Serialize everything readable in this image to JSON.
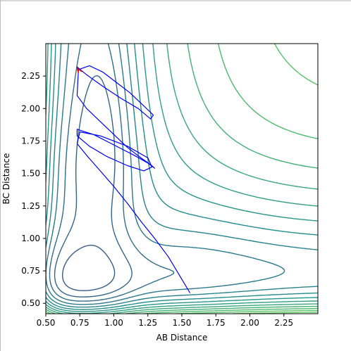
{
  "chart_data": {
    "type": "contour",
    "xlabel": "AB Distance",
    "ylabel": "BC Distance",
    "xlim": [
      0.5,
      2.5
    ],
    "ylim": [
      0.42,
      2.5
    ],
    "x_ticks": [
      0.5,
      0.75,
      1.0,
      1.25,
      1.5,
      1.75,
      2.0,
      2.25
    ],
    "x_tick_labels": [
      "0.50",
      "0.75",
      "1.00",
      "1.25",
      "1.50",
      "1.75",
      "2.00",
      "2.25"
    ],
    "y_ticks": [
      0.5,
      0.75,
      1.0,
      1.25,
      1.5,
      1.75,
      2.0,
      2.25
    ],
    "y_tick_labels": [
      "0.50",
      "0.75",
      "1.00",
      "1.25",
      "1.50",
      "1.75",
      "2.00",
      "2.25"
    ],
    "grid": false,
    "legend": "none",
    "colormap": [
      "#440154",
      "#3b528b",
      "#21918c",
      "#5ec962",
      "#fde725"
    ],
    "trajectory_color": "#0000ff",
    "trajectory": {
      "x": [
        1.56,
        1.48,
        1.4,
        1.3,
        1.2,
        1.1,
        1.0,
        0.9,
        0.8,
        0.73,
        0.75,
        0.9,
        1.1,
        1.25,
        1.28,
        1.22,
        1.1,
        0.95,
        0.82,
        0.73,
        0.73,
        0.85,
        1.0,
        1.15,
        1.25,
        1.3,
        1.28,
        1.2,
        1.1,
        1.0,
        0.9,
        0.8,
        0.73,
        0.74,
        0.82,
        0.92,
        1.02,
        1.12,
        1.22,
        1.29,
        1.27,
        1.18,
        1.05,
        0.92,
        0.8,
        0.73,
        0.74
      ],
      "y": [
        0.58,
        0.72,
        0.86,
        1.0,
        1.13,
        1.27,
        1.4,
        1.52,
        1.64,
        1.73,
        1.82,
        1.79,
        1.71,
        1.62,
        1.55,
        1.52,
        1.56,
        1.63,
        1.71,
        1.79,
        1.84,
        1.8,
        1.72,
        1.64,
        1.58,
        1.54,
        1.56,
        1.62,
        1.7,
        1.8,
        1.9,
        2.0,
        2.1,
        2.3,
        2.33,
        2.28,
        2.2,
        2.12,
        2.02,
        1.95,
        1.92,
        2.0,
        2.08,
        2.17,
        2.26,
        2.32,
        2.3
      ],
      "end_marker": {
        "x": 0.73,
        "y": 2.31,
        "color": "#ff0000"
      }
    }
  }
}
